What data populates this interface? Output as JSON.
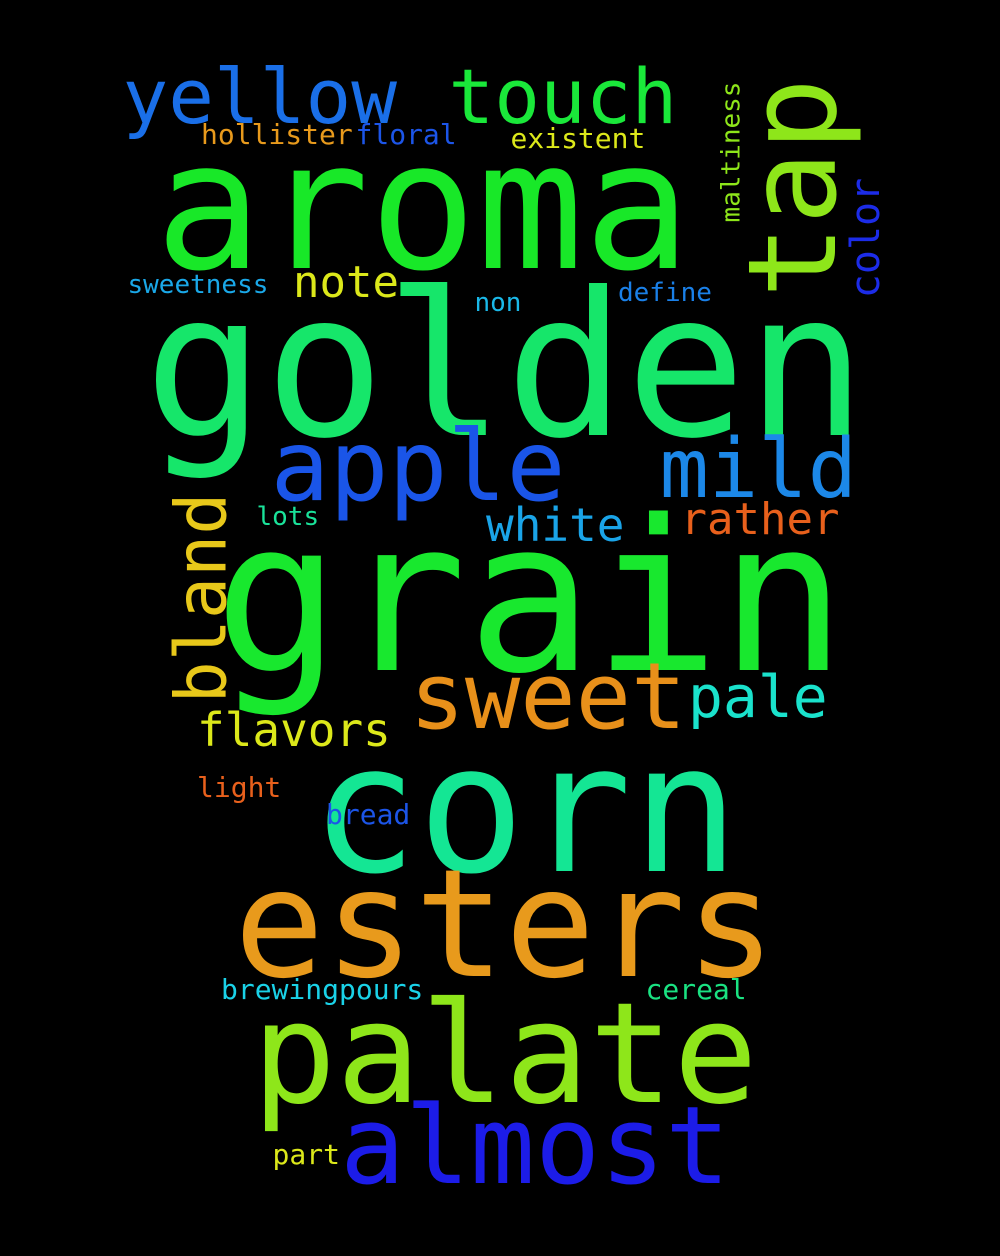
{
  "background": "#000000",
  "words": [
    {
      "text": "grain",
      "color": "#18e82e",
      "size": 210,
      "rotated": false
    },
    {
      "text": "golden",
      "color": "#16e66a",
      "size": 200,
      "rotated": false
    },
    {
      "text": "aroma",
      "color": "#18e828",
      "size": 178,
      "rotated": false
    },
    {
      "text": "corn",
      "color": "#14e694",
      "size": 178,
      "rotated": false
    },
    {
      "text": "esters",
      "color": "#e89a1c",
      "size": 150,
      "rotated": false
    },
    {
      "text": "palate",
      "color": "#8ee61a",
      "size": 140,
      "rotated": false
    },
    {
      "text": "tap",
      "color": "#8ee61a",
      "size": 122,
      "rotated": true
    },
    {
      "text": "almost",
      "color": "#1c1ce8",
      "size": 108,
      "rotated": false
    },
    {
      "text": "apple",
      "color": "#1a55e8",
      "size": 98,
      "rotated": false
    },
    {
      "text": "sweet",
      "color": "#e8901a",
      "size": 92,
      "rotated": false
    },
    {
      "text": "mild",
      "color": "#1c88e8",
      "size": 82,
      "rotated": false
    },
    {
      "text": "yellow",
      "color": "#1a6fe8",
      "size": 76,
      "rotated": false
    },
    {
      "text": "touch",
      "color": "#1ae83a",
      "size": 76,
      "rotated": false
    },
    {
      "text": "bland",
      "color": "#e8c81a",
      "size": 70,
      "rotated": true
    },
    {
      "text": "pale",
      "color": "#1ae2cc",
      "size": 58,
      "rotated": false
    },
    {
      "text": "white",
      "color": "#1aa4e8",
      "size": 46,
      "rotated": false
    },
    {
      "text": "flavors",
      "color": "#dce81a",
      "size": 46,
      "rotated": false
    },
    {
      "text": "rather",
      "color": "#e8601c",
      "size": 44,
      "rotated": false
    },
    {
      "text": "note",
      "color": "#dce81a",
      "size": 44,
      "rotated": false
    },
    {
      "text": "color",
      "color": "#1c2ce8",
      "size": 40,
      "rotated": true
    },
    {
      "text": "existent",
      "color": "#dce81a",
      "size": 28,
      "rotated": false
    },
    {
      "text": "maltiness",
      "color": "#8ee61a",
      "size": 26,
      "rotated": true
    },
    {
      "text": "hollister",
      "color": "#e89a1c",
      "size": 28,
      "rotated": false
    },
    {
      "text": "floral",
      "color": "#1c55e8",
      "size": 28,
      "rotated": false
    },
    {
      "text": "sweetness",
      "color": "#1aa8e8",
      "size": 26,
      "rotated": false
    },
    {
      "text": "define",
      "color": "#1a80e8",
      "size": 26,
      "rotated": false
    },
    {
      "text": "non",
      "color": "#1ab8e8",
      "size": 26,
      "rotated": false
    },
    {
      "text": "lots",
      "color": "#1ae29a",
      "size": 26,
      "rotated": false
    },
    {
      "text": "light",
      "color": "#e8601c",
      "size": 28,
      "rotated": false
    },
    {
      "text": "bread",
      "color": "#1c55e8",
      "size": 28,
      "rotated": false
    },
    {
      "text": "brewingpours",
      "color": "#1ad2e8",
      "size": 28,
      "rotated": false
    },
    {
      "text": "cereal",
      "color": "#1ae282",
      "size": 28,
      "rotated": false
    },
    {
      "text": "part",
      "color": "#dce81a",
      "size": 28,
      "rotated": false
    }
  ]
}
